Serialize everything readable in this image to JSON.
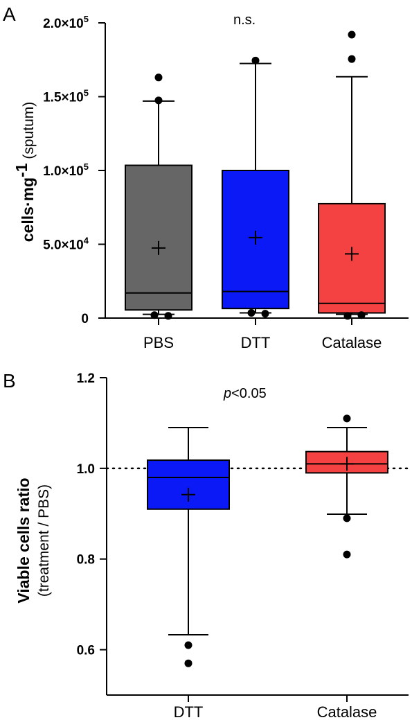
{
  "panels": [
    {
      "panel_letter": "A",
      "annotation": "n.s.",
      "ylabel_bold": "cells·mg",
      "ylabel_sup": "-1",
      "ylabel_normal": " (sputum)",
      "y_ticks": [
        {
          "value": 0,
          "text": "0"
        },
        {
          "value": 50000,
          "text": "5.0×10",
          "sup": "4"
        },
        {
          "value": 100000,
          "text": "1.0×10",
          "sup": "5"
        },
        {
          "value": 150000,
          "text": "1.5×10",
          "sup": "5"
        },
        {
          "value": 200000,
          "text": "2.0×10",
          "sup": "5"
        }
      ]
    },
    {
      "panel_letter": "B",
      "annotation_italic": "p",
      "annotation_rest": "<0.05",
      "ylabel_bold": "Viable cells ratio",
      "ylabel_normal": "(treatment / PBS)",
      "y_ticks": [
        {
          "value": 0.6,
          "text": "0.6"
        },
        {
          "value": 0.8,
          "text": "0.8"
        },
        {
          "value": 1.0,
          "text": "1.0"
        },
        {
          "value": 1.2,
          "text": "1.2"
        }
      ]
    }
  ],
  "chart_data": [
    {
      "type": "box",
      "title": "",
      "ylabel": "cells·mg-1 (sputum)",
      "ylim": [
        0,
        200000
      ],
      "grid": false,
      "categories": [
        "PBS",
        "DTT",
        "Catalase"
      ],
      "series": [
        {
          "category": "PBS",
          "color": "#666666",
          "q1": 5500,
          "median": 17000,
          "q3": 103500,
          "whisker_low": 2500,
          "whisker_high": 147000,
          "mean": 47500,
          "outliers": [
            163000,
            147500,
            2000,
            1500
          ]
        },
        {
          "category": "DTT",
          "color": "#0a19f5",
          "q1": 6500,
          "median": 18000,
          "q3": 100000,
          "whisker_low": 3500,
          "whisker_high": 172500,
          "mean": 54500,
          "outliers": [
            174500,
            3000,
            3500
          ]
        },
        {
          "category": "Catalase",
          "color": "#f44242",
          "q1": 3500,
          "median": 10000,
          "q3": 77500,
          "whisker_low": 2500,
          "whisker_high": 163500,
          "mean": 43500,
          "outliers": [
            192000,
            175500,
            1500,
            2000
          ]
        }
      ]
    },
    {
      "type": "box",
      "title": "",
      "ylabel": "Viable cells ratio (treatment / PBS)",
      "ylim": [
        0.5,
        1.2
      ],
      "grid": false,
      "reference_line": 1.0,
      "categories": [
        "DTT",
        "Catalase"
      ],
      "series": [
        {
          "category": "DTT",
          "color": "#0a19f5",
          "q1": 0.91,
          "median": 0.98,
          "q3": 1.018,
          "whisker_low": 0.633,
          "whisker_high": 1.09,
          "mean": 0.942,
          "outliers": [
            0.61,
            0.57
          ]
        },
        {
          "category": "Catalase",
          "color": "#f44242",
          "q1": 0.99,
          "median": 1.01,
          "q3": 1.037,
          "whisker_low": 0.899,
          "whisker_high": 1.09,
          "mean": 1.01,
          "outliers": [
            1.11,
            0.89,
            0.81
          ]
        }
      ]
    }
  ]
}
